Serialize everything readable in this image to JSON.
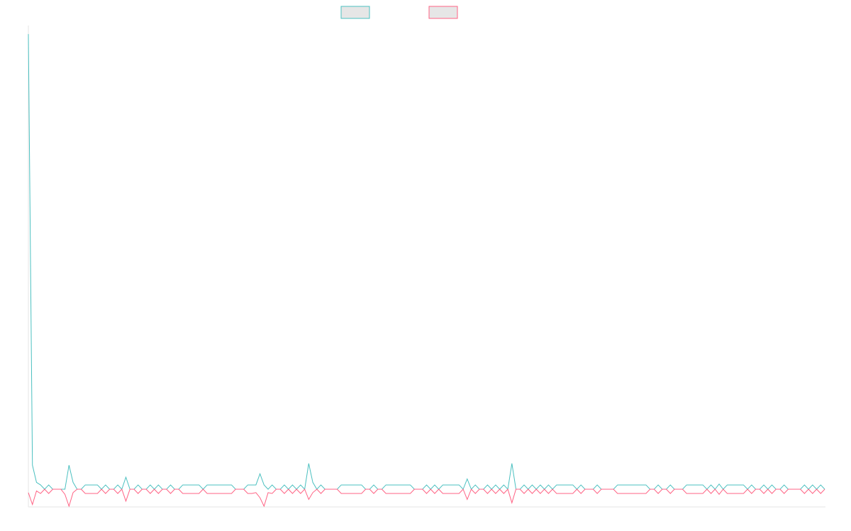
{
  "chart_data": {
    "type": "line",
    "title": "",
    "xlabel": "",
    "ylabel": "",
    "legend_position": "top",
    "grid": false,
    "ylim": [
      -1,
      27
    ],
    "x_count": 197,
    "series": [
      {
        "name": "",
        "color": "#4bc0c0",
        "legend_fill": "#e6e6e6",
        "spikes": [
          {
            "i": 0,
            "v": 26.5
          },
          {
            "i": 1,
            "v": 1.4
          },
          {
            "i": 2,
            "v": 0.4
          },
          {
            "i": 10,
            "v": 1.4
          },
          {
            "i": 11,
            "v": 0.4
          },
          {
            "i": 24,
            "v": 0.7
          },
          {
            "i": 57,
            "v": 0.9
          },
          {
            "i": 69,
            "v": 1.5
          },
          {
            "i": 70,
            "v": 0.4
          },
          {
            "i": 108,
            "v": 0.6
          },
          {
            "i": 119,
            "v": 1.5
          },
          {
            "i": 170,
            "v": 0.3
          }
        ],
        "diamonds": [
          3,
          5,
          15,
          19,
          22,
          27,
          30,
          32,
          35,
          41,
          44,
          47,
          50,
          54,
          60,
          63,
          65,
          67,
          72,
          77,
          80,
          85,
          90,
          94,
          98,
          100,
          103,
          110,
          113,
          115,
          117,
          122,
          124,
          126,
          128,
          131,
          134,
          136,
          140,
          148,
          152,
          155,
          158,
          162,
          168,
          174,
          178,
          181,
          183,
          186,
          191,
          193,
          195
        ],
        "flats": [
          [
            14,
            17
          ],
          [
            38,
            42
          ],
          [
            45,
            49
          ],
          [
            55,
            58
          ],
          [
            78,
            82
          ],
          [
            88,
            93
          ],
          [
            102,
            106
          ],
          [
            130,
            134
          ],
          [
            145,
            151
          ],
          [
            162,
            166
          ],
          [
            172,
            176
          ]
        ]
      },
      {
        "name": "",
        "color": "#ff6384",
        "legend_fill": "#e6e6e6",
        "spikes": [
          {
            "i": 0,
            "v": -0.2
          },
          {
            "i": 1,
            "v": -0.9
          },
          {
            "i": 2,
            "v": -0.1
          },
          {
            "i": 9,
            "v": -0.3
          },
          {
            "i": 10,
            "v": -1.0
          },
          {
            "i": 11,
            "v": -0.2
          },
          {
            "i": 24,
            "v": -0.7
          },
          {
            "i": 57,
            "v": -0.5
          },
          {
            "i": 56,
            "v": -0.2
          },
          {
            "i": 58,
            "v": -1.0
          },
          {
            "i": 59,
            "v": -0.2
          },
          {
            "i": 69,
            "v": -0.6
          },
          {
            "i": 70,
            "v": -0.2
          },
          {
            "i": 108,
            "v": -0.6
          },
          {
            "i": 119,
            "v": -0.8
          },
          {
            "i": 170,
            "v": -0.3
          }
        ],
        "diamonds": [
          3,
          5,
          15,
          19,
          22,
          27,
          30,
          32,
          35,
          41,
          44,
          47,
          50,
          54,
          60,
          63,
          65,
          67,
          72,
          77,
          80,
          85,
          90,
          94,
          98,
          100,
          103,
          110,
          113,
          115,
          117,
          122,
          124,
          126,
          128,
          131,
          134,
          136,
          140,
          148,
          152,
          155,
          158,
          162,
          168,
          174,
          178,
          181,
          183,
          186,
          191,
          193,
          195
        ],
        "flats": [
          [
            14,
            17
          ],
          [
            38,
            42
          ],
          [
            45,
            49
          ],
          [
            55,
            58
          ],
          [
            78,
            82
          ],
          [
            88,
            93
          ],
          [
            102,
            106
          ],
          [
            130,
            134
          ],
          [
            145,
            151
          ],
          [
            162,
            166
          ],
          [
            172,
            176
          ]
        ]
      }
    ]
  }
}
